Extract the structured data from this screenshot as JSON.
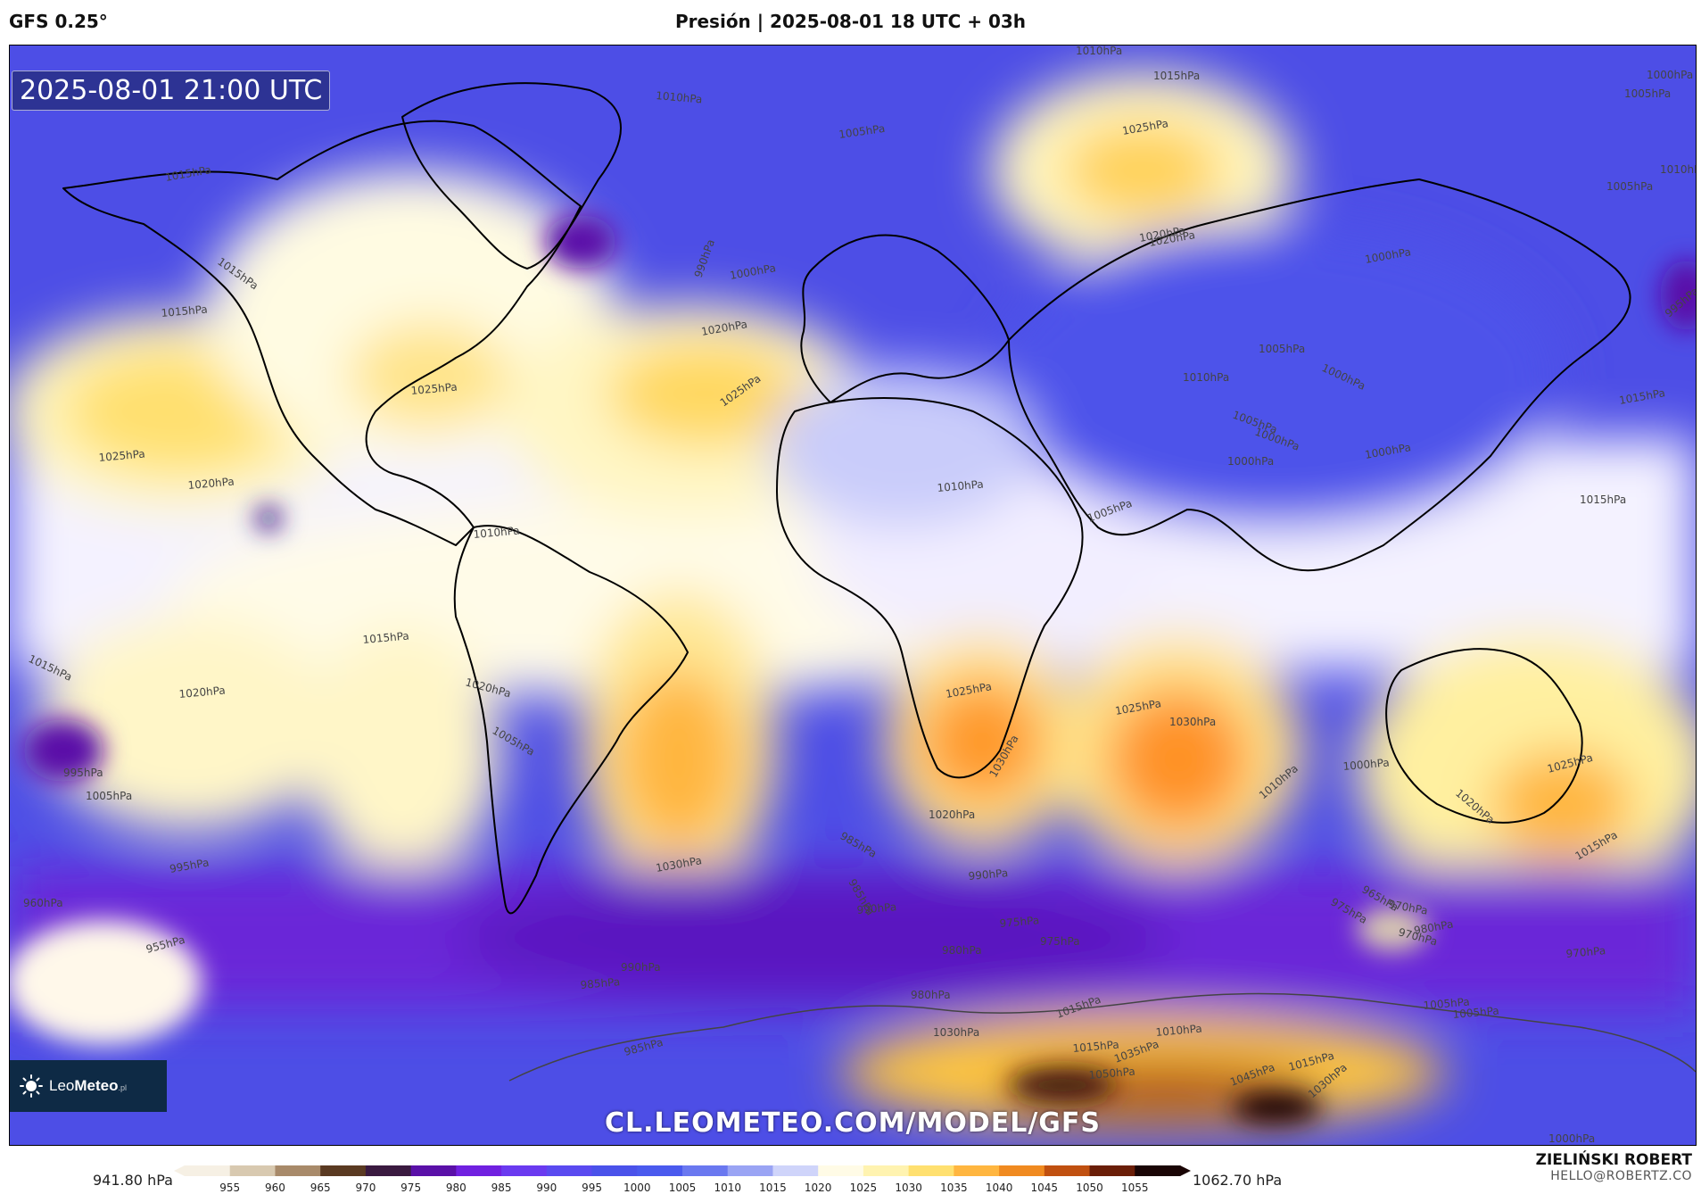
{
  "header": {
    "model": "GFS 0.25°",
    "title": "Presión | 2025-08-01 18 UTC + 03h"
  },
  "map": {
    "timestamp": "2025-08-01 21:00 UTC",
    "watermark": "CL.LEOMETEO.COM/MODEL/GFS",
    "logo": {
      "icon": "sun-icon",
      "prefix": "Leo",
      "brand": "Meteo",
      "suffix": ".pl"
    },
    "isobar_labels": [
      {
        "text": "1010hPa"
      },
      {
        "text": "1015hPa"
      },
      {
        "text": "1000hPa"
      },
      {
        "text": "1005hPa"
      },
      {
        "text": "1025hPa"
      },
      {
        "text": "1010hPa"
      },
      {
        "text": "1005hPa"
      },
      {
        "text": "1010hPa"
      },
      {
        "text": "1005hPa"
      },
      {
        "text": "1020hPa"
      },
      {
        "text": "1000hPa"
      },
      {
        "text": "990hPa"
      },
      {
        "text": "1000hPa"
      },
      {
        "text": "1020hPa"
      },
      {
        "text": "1015hPa"
      },
      {
        "text": "1015hPa"
      },
      {
        "text": "1015hPa"
      },
      {
        "text": "1020hPa"
      },
      {
        "text": "1025hPa"
      },
      {
        "text": "1025hPa"
      },
      {
        "text": "1025hPa"
      },
      {
        "text": "1020hPa"
      },
      {
        "text": "1005hPa"
      },
      {
        "text": "1000hPa"
      },
      {
        "text": "995hPa"
      },
      {
        "text": "1010hPa"
      },
      {
        "text": "1005hPa"
      },
      {
        "text": "1000hPa"
      },
      {
        "text": "1015hPa"
      },
      {
        "text": "1000hPa"
      },
      {
        "text": "1000hPa"
      },
      {
        "text": "1015hPa"
      },
      {
        "text": "1010hPa"
      },
      {
        "text": "1010hPa"
      },
      {
        "text": "1005hPa"
      },
      {
        "text": "1015hPa"
      },
      {
        "text": "1015hPa"
      },
      {
        "text": "1020hPa"
      },
      {
        "text": "1020hPa"
      },
      {
        "text": "995hPa"
      },
      {
        "text": "1005hPa"
      },
      {
        "text": "1005hPa"
      },
      {
        "text": "1025hPa"
      },
      {
        "text": "1025hPa"
      },
      {
        "text": "1030hPa"
      },
      {
        "text": "1030hPa"
      },
      {
        "text": "1020hPa"
      },
      {
        "text": "1000hPa"
      },
      {
        "text": "1010hPa"
      },
      {
        "text": "1020hPa"
      },
      {
        "text": "1025hPa"
      },
      {
        "text": "1015hPa"
      },
      {
        "text": "1030hPa"
      },
      {
        "text": "995hPa"
      },
      {
        "text": "985hPa"
      },
      {
        "text": "990hPa"
      },
      {
        "text": "985hPa"
      },
      {
        "text": "990hPa"
      },
      {
        "text": "975hPa"
      },
      {
        "text": "980hPa"
      },
      {
        "text": "975hPa"
      },
      {
        "text": "965hPa"
      },
      {
        "text": "970hPa"
      },
      {
        "text": "970hPa"
      },
      {
        "text": "955hPa"
      },
      {
        "text": "960hPa"
      },
      {
        "text": "980hPa"
      },
      {
        "text": "990hPa"
      },
      {
        "text": "985hPa"
      },
      {
        "text": "980hPa"
      },
      {
        "text": "1015hPa"
      },
      {
        "text": "1010hPa"
      },
      {
        "text": "1030hPa"
      },
      {
        "text": "1035hPa"
      },
      {
        "text": "1050hPa"
      },
      {
        "text": "1045hPa"
      },
      {
        "text": "1030hPa"
      },
      {
        "text": "1005hPa"
      },
      {
        "text": "1000hPa"
      },
      {
        "text": "1015hPa"
      },
      {
        "text": "975hPa"
      },
      {
        "text": "970hPa"
      },
      {
        "text": "985hPa"
      },
      {
        "text": "1015hPa"
      },
      {
        "text": "1005hPa"
      }
    ]
  },
  "legend": {
    "min_label": "941.80 hPa",
    "max_label": "1062.70 hPa",
    "ticks": [
      "955",
      "960",
      "965",
      "970",
      "975",
      "980",
      "985",
      "990",
      "995",
      "1000",
      "1005",
      "1010",
      "1015",
      "1020",
      "1025",
      "1030",
      "1035",
      "1040",
      "1045",
      "1050",
      "1055"
    ],
    "colors": [
      "#f6f0e4",
      "#d8c9b0",
      "#a88a6a",
      "#5a3a22",
      "#3a1a40",
      "#5a10a8",
      "#7020e0",
      "#6a3af0",
      "#5a4af0",
      "#4a52ea",
      "#4a5aee",
      "#6a78f0",
      "#9aa4f4",
      "#cfd4fa",
      "#fffbe6",
      "#fff3b0",
      "#ffe070",
      "#ffb640",
      "#f08a20",
      "#c05010",
      "#6a1e08",
      "#1a0505"
    ]
  },
  "credit": {
    "name": "ZIELIŃSKI ROBERT",
    "email": "HELLO@ROBERTZ.CO"
  }
}
